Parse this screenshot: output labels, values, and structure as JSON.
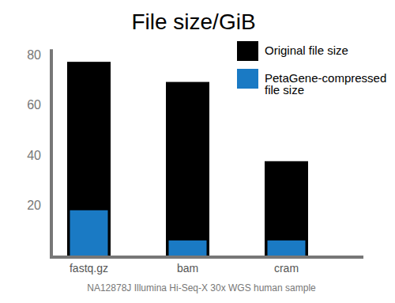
{
  "chart_data": {
    "type": "bar",
    "title": "File size/GiB",
    "xlabel": "NA12878J Illumina Hi-Seq-X 30x WGS human sample",
    "categories": [
      "fastq.gz",
      "bam",
      "cram"
    ],
    "series": [
      {
        "name": "Original file size",
        "color": "#000000",
        "values": [
          77,
          69,
          37.5
        ]
      },
      {
        "name": "PetaGene-compressed file size",
        "color": "#1a7ac4",
        "values": [
          18,
          6,
          6
        ]
      }
    ],
    "ylim": [
      0,
      82
    ],
    "yticks": [
      20,
      40,
      60,
      80
    ],
    "grid": false,
    "legend": "upper right"
  }
}
